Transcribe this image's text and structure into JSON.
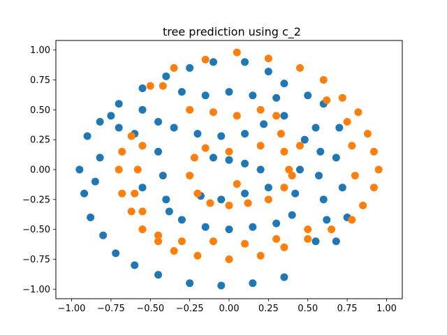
{
  "chart_data": {
    "type": "scatter",
    "title": "tree prediction using c_2",
    "xlabel": "",
    "ylabel": "",
    "xlim": [
      -1.1,
      1.1
    ],
    "ylim": [
      -1.08,
      1.08
    ],
    "xticks": [
      -1.0,
      -0.75,
      -0.5,
      -0.25,
      0.0,
      0.25,
      0.5,
      0.75,
      1.0
    ],
    "xtick_labels": [
      "−1.00",
      "−0.75",
      "−0.50",
      "−0.25",
      "0.00",
      "0.25",
      "0.50",
      "0.75",
      "1.00"
    ],
    "yticks": [
      1.0,
      0.75,
      0.5,
      0.25,
      0.0,
      -0.25,
      -0.5,
      -0.75,
      -1.0
    ],
    "ytick_labels": [
      "1.00",
      "0.75",
      "0.50",
      "0.25",
      "0.00",
      "−0.25",
      "−0.50",
      "−0.75",
      "−1.00"
    ],
    "grid": false,
    "legend": "none",
    "series": [
      {
        "color": "#1f77b4",
        "description_points": "blue class",
        "points": [
          [
            -0.9,
            0.28
          ],
          [
            -0.82,
            0.4
          ],
          [
            -0.7,
            0.55
          ],
          [
            -0.55,
            0.68
          ],
          [
            -0.4,
            0.78
          ],
          [
            -0.25,
            0.85
          ],
          [
            -0.1,
            0.9
          ],
          [
            0.1,
            0.9
          ],
          [
            0.25,
            0.82
          ],
          [
            0.35,
            0.72
          ],
          [
            0.5,
            0.62
          ],
          [
            0.6,
            0.55
          ],
          [
            0.55,
            0.35
          ],
          [
            0.58,
            0.15
          ],
          [
            0.57,
            -0.05
          ],
          [
            0.6,
            -0.25
          ],
          [
            0.62,
            -0.42
          ],
          [
            0.55,
            -0.6
          ],
          [
            0.68,
            -0.6
          ],
          [
            -0.95,
            0.0
          ],
          [
            -0.92,
            -0.2
          ],
          [
            -0.88,
            -0.4
          ],
          [
            -0.8,
            -0.55
          ],
          [
            -0.72,
            -0.7
          ],
          [
            -0.6,
            -0.8
          ],
          [
            -0.45,
            -0.88
          ],
          [
            -0.25,
            -0.95
          ],
          [
            -0.05,
            -0.97
          ],
          [
            0.15,
            -0.95
          ],
          [
            0.35,
            -0.9
          ],
          [
            -0.45,
            0.4
          ],
          [
            -0.35,
            0.35
          ],
          [
            -0.2,
            0.3
          ],
          [
            -0.05,
            0.28
          ],
          [
            0.1,
            0.3
          ],
          [
            0.22,
            0.38
          ],
          [
            -0.45,
            0.15
          ],
          [
            -0.42,
            -0.05
          ],
          [
            -0.4,
            -0.25
          ],
          [
            -0.38,
            -0.35
          ],
          [
            -0.3,
            -0.42
          ],
          [
            -0.15,
            -0.48
          ],
          [
            0.0,
            -0.5
          ],
          [
            0.15,
            -0.48
          ],
          [
            0.3,
            -0.45
          ],
          [
            0.4,
            -0.38
          ],
          [
            0.42,
            -0.2
          ],
          [
            0.45,
            0.0
          ],
          [
            0.48,
            0.25
          ],
          [
            0.35,
            0.45
          ],
          [
            -0.1,
            0.1
          ],
          [
            0.0,
            0.08
          ],
          [
            0.1,
            0.05
          ],
          [
            0.2,
            0.0
          ],
          [
            0.25,
            -0.15
          ],
          [
            0.1,
            -0.2
          ],
          [
            -0.05,
            -0.25
          ],
          [
            -0.18,
            -0.22
          ],
          [
            -0.6,
            0.3
          ],
          [
            -0.55,
            -0.15
          ],
          [
            -0.82,
            0.1
          ],
          [
            -0.85,
            -0.1
          ],
          [
            -0.75,
            0.45
          ],
          [
            0.7,
            0.35
          ],
          [
            0.68,
            0.1
          ],
          [
            0.72,
            -0.15
          ],
          [
            0.75,
            -0.4
          ],
          [
            0.3,
            0.6
          ],
          [
            0.15,
            0.62
          ],
          [
            0.0,
            0.65
          ],
          [
            -0.15,
            0.62
          ],
          [
            -0.3,
            0.65
          ],
          [
            -0.55,
            0.5
          ],
          [
            -0.7,
            0.35
          ]
        ]
      },
      {
        "color": "#ff7f0e",
        "description_points": "orange class",
        "points": [
          [
            -0.5,
            0.7
          ],
          [
            -0.35,
            0.85
          ],
          [
            -0.15,
            0.92
          ],
          [
            0.05,
            0.98
          ],
          [
            0.25,
            0.93
          ],
          [
            0.45,
            0.85
          ],
          [
            0.6,
            0.75
          ],
          [
            0.72,
            0.6
          ],
          [
            0.82,
            0.48
          ],
          [
            0.88,
            0.3
          ],
          [
            0.92,
            0.15
          ],
          [
            0.95,
            0.0
          ],
          [
            0.92,
            -0.15
          ],
          [
            0.85,
            -0.3
          ],
          [
            0.78,
            -0.42
          ],
          [
            0.65,
            -0.5
          ],
          [
            0.5,
            -0.58
          ],
          [
            0.35,
            -0.65
          ],
          [
            0.2,
            -0.72
          ],
          [
            0.0,
            -0.75
          ],
          [
            -0.2,
            -0.72
          ],
          [
            -0.35,
            -0.68
          ],
          [
            -0.45,
            -0.6
          ],
          [
            -0.55,
            -0.5
          ],
          [
            -0.62,
            -0.35
          ],
          [
            -0.68,
            -0.2
          ],
          [
            -0.7,
            0.0
          ],
          [
            -0.68,
            0.15
          ],
          [
            -0.62,
            0.28
          ],
          [
            -0.55,
            0.2
          ],
          [
            -0.58,
            0.0
          ],
          [
            -0.6,
            -0.2
          ],
          [
            -0.55,
            -0.35
          ],
          [
            -0.45,
            -0.55
          ],
          [
            -0.25,
            0.5
          ],
          [
            -0.1,
            0.48
          ],
          [
            0.05,
            0.45
          ],
          [
            0.2,
            0.5
          ],
          [
            0.3,
            0.45
          ],
          [
            0.33,
            0.3
          ],
          [
            0.35,
            0.15
          ],
          [
            0.38,
            0.0
          ],
          [
            0.35,
            -0.15
          ],
          [
            0.25,
            -0.25
          ],
          [
            0.12,
            -0.28
          ],
          [
            0.0,
            -0.3
          ],
          [
            -0.12,
            -0.28
          ],
          [
            -0.2,
            -0.2
          ],
          [
            -0.25,
            -0.05
          ],
          [
            -0.22,
            0.1
          ],
          [
            -0.15,
            0.18
          ],
          [
            0.0,
            0.15
          ],
          [
            0.05,
            -0.12
          ],
          [
            0.45,
            0.2
          ],
          [
            0.4,
            -0.05
          ],
          [
            0.5,
            -0.5
          ],
          [
            0.62,
            0.58
          ],
          [
            0.78,
            0.2
          ],
          [
            0.8,
            -0.05
          ],
          [
            0.75,
            0.4
          ],
          [
            -0.1,
            -0.6
          ],
          [
            0.1,
            -0.62
          ],
          [
            0.3,
            -0.58
          ],
          [
            -0.3,
            -0.6
          ],
          [
            -0.42,
            0.7
          ],
          [
            0.2,
            0.2
          ]
        ]
      }
    ]
  }
}
